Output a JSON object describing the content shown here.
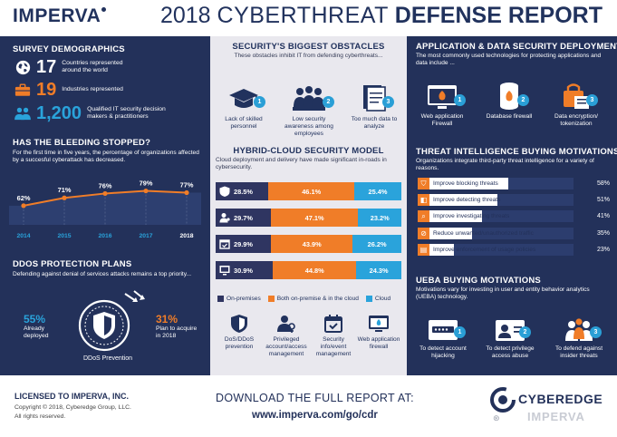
{
  "header": {
    "logo": "IMPERVA",
    "title_year": "2018",
    "title_mid": "CYBERTHREAT",
    "title_end": "DEFENSE REPORT"
  },
  "demographics": {
    "title": "SURVEY DEMOGRAPHICS",
    "rows": [
      {
        "icon": "globe-icon",
        "value": "17",
        "label": "Countries represented around the world"
      },
      {
        "icon": "briefcase-icon",
        "value": "19",
        "label": "Industries represented"
      },
      {
        "icon": "people-icon",
        "value": "1,200",
        "label": "Qualified IT security decision makers & practitioners"
      }
    ]
  },
  "bleeding": {
    "title": "HAS THE BLEEDING STOPPED?",
    "subtitle": "For the first time in five years, the percentage of organizations affected by a succesful cyberattack has decreased."
  },
  "chart_data": {
    "type": "line",
    "title": "HAS THE BLEEDING STOPPED?",
    "categories": [
      "2014",
      "2015",
      "2016",
      "2017",
      "2018"
    ],
    "values": [
      62,
      71,
      76,
      79,
      77
    ],
    "value_labels": [
      "62%",
      "71%",
      "76%",
      "79%",
      "77%"
    ],
    "ylim": [
      40,
      90
    ],
    "line_color": "#f07d28",
    "fill_color": "#2d3f70"
  },
  "ddos": {
    "title": "DDOS PROTECTION PLANS",
    "subtitle": "Defending against denial of services attacks remains a top priority...",
    "left_pct": "55%",
    "left_label": "Already deployed",
    "right_pct": "31%",
    "right_label": "Plan to acquire in 2018",
    "center_label": "DDoS Prevention"
  },
  "obstacles": {
    "title": "SECURITY'S BIGGEST OBSTACLES",
    "subtitle": "These obstacles inhibit IT from defending cyberthreats...",
    "items": [
      {
        "num": "1",
        "label": "Lack of skilled personnel"
      },
      {
        "num": "2",
        "label": "Low security awareness among employees"
      },
      {
        "num": "3",
        "label": "Too much data to analyze"
      }
    ]
  },
  "hybrid": {
    "title": "HYBRID-CLOUD SECURITY MODEL",
    "subtitle": "Cloud deployment and delivery have made significant in-roads in cybersecurity.",
    "rows": [
      {
        "icon": "shield-icon",
        "onprem": "28.5%",
        "onprem_v": 28.5,
        "both": "46.1%",
        "both_v": 46.1,
        "cloud": "25.4%",
        "cloud_v": 25.4
      },
      {
        "icon": "user-key-icon",
        "onprem": "29.7%",
        "onprem_v": 29.7,
        "both": "47.1%",
        "both_v": 47.1,
        "cloud": "23.2%",
        "cloud_v": 23.2
      },
      {
        "icon": "calendar-check-icon",
        "onprem": "29.9%",
        "onprem_v": 29.9,
        "both": "43.9%",
        "both_v": 43.9,
        "cloud": "26.2%",
        "cloud_v": 26.2
      },
      {
        "icon": "web-firewall-icon",
        "onprem": "30.9%",
        "onprem_v": 30.9,
        "both": "44.8%",
        "both_v": 44.8,
        "cloud": "24.3%",
        "cloud_v": 24.3
      }
    ],
    "legend": {
      "onprem": "On-premises",
      "both": "Both on-premise & in the cloud",
      "cloud": "Cloud"
    },
    "icons": [
      {
        "label": "DoS/DDoS prevention"
      },
      {
        "label": "Privileged account/access management"
      },
      {
        "label": "Security info/event management"
      },
      {
        "label": "Web application firewall"
      }
    ],
    "colors": {
      "onprem": "#2f3561",
      "both": "#f07d28",
      "cloud": "#2aa3db"
    }
  },
  "appsec": {
    "title": "APPLICATION & DATA SECURITY DEPLOYMENTS",
    "subtitle": "The most commonly used technologies for protecting applications and data include ...",
    "items": [
      {
        "num": "1",
        "label": "Web application Firewall"
      },
      {
        "num": "2",
        "label": "Database firewall"
      },
      {
        "num": "3",
        "label": "Data encryption/ tokenization"
      }
    ]
  },
  "threat": {
    "title": "THREAT INTELLIGENCE BUYING MOTIVATIONS",
    "subtitle": "Organizations integrate third-party threat intelligence for a variety of reasons.",
    "bars": [
      {
        "label": "Improve blocking threats",
        "pct": "58%",
        "value": 58
      },
      {
        "label": "Improve detecting threats",
        "pct": "51%",
        "value": 51
      },
      {
        "label": "Improve investigating threats",
        "pct": "41%",
        "value": 41
      },
      {
        "label": "Reduce unwanted/unauthorized traffic",
        "pct": "35%",
        "value": 35
      },
      {
        "label": "Improve enforcement of usage policies",
        "pct": "23%",
        "value": 23
      }
    ]
  },
  "ueba": {
    "title": "UEBA BUYING MOTIVATIONS",
    "subtitle": "Motivations vary for investing in user and entity behavior analytics (UEBA) technology.",
    "items": [
      {
        "num": "1",
        "label": "To detect account hijacking"
      },
      {
        "num": "2",
        "label": "To detect privilege access abuse"
      },
      {
        "num": "3",
        "label": "To defend against insider threats"
      }
    ]
  },
  "footer": {
    "license_title": "LICENSED TO IMPERVA, INC.",
    "copyright": "Copyright © 2018, Cyberedge Group, LLC.",
    "rights": "All rights reserved.",
    "download": "DOWNLOAD THE FULL REPORT AT:",
    "url": "www.imperva.com/go/cdr",
    "cyber_a": "CYBER",
    "cyber_b": "EDGE",
    "watermark_brand": "IMPERVA"
  }
}
